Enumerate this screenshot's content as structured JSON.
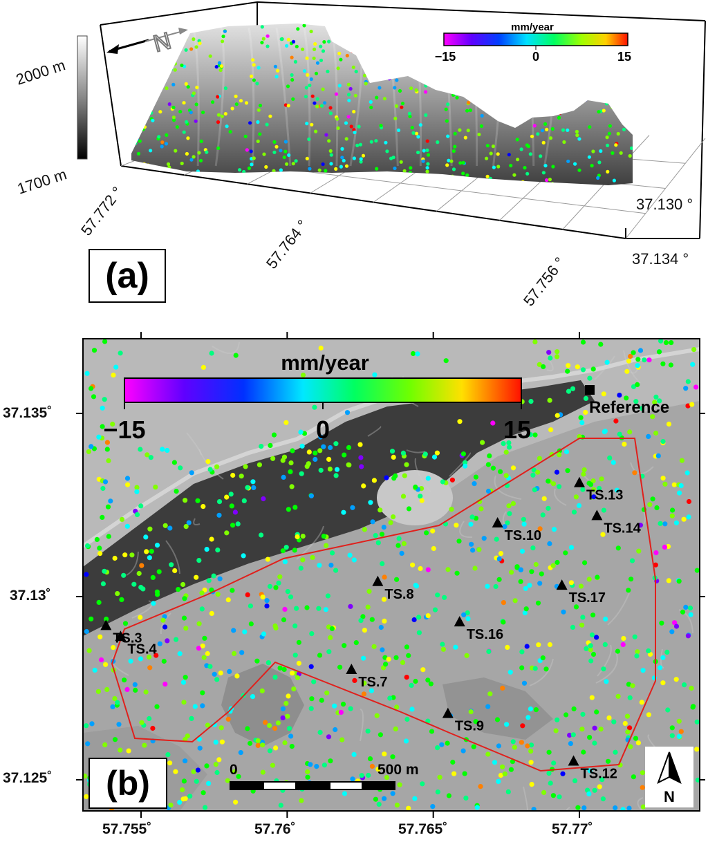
{
  "panel_a": {
    "label": "(a)",
    "elevation_scale": {
      "max_label": "2000 m",
      "min_label": "1700 m"
    },
    "colorbar": {
      "title": "mm/year",
      "min_label": "−15",
      "mid_label": "0",
      "max_label": "15"
    },
    "north_arrow": {
      "letter": "N"
    },
    "lon_ticks": [
      "57.772 °",
      "57.764 °",
      "57.756 °"
    ],
    "lat_ticks": [
      "37.130 °",
      "37.134 °"
    ]
  },
  "panel_b": {
    "label": "(b)",
    "colorbar": {
      "title": "mm/year",
      "min_label": "−15",
      "mid_label": "0",
      "max_label": "15"
    },
    "reference_label": "Reference",
    "scale_bar": {
      "start_label": "0",
      "end_label": "500 m"
    },
    "north_arrow": {
      "letter": "N"
    },
    "lat_ticks": [
      "37.135˚",
      "37.13˚",
      "37.125˚"
    ],
    "lon_ticks": [
      "57.755˚",
      "57.76˚",
      "57.765˚",
      "57.77˚"
    ],
    "stations": [
      {
        "id": "TS.3",
        "lon": 57.7538,
        "lat": 37.1292
      },
      {
        "id": "TS.4",
        "lon": 57.7543,
        "lat": 37.1289
      },
      {
        "id": "TS.7",
        "lon": 57.7622,
        "lat": 37.128
      },
      {
        "id": "TS.8",
        "lon": 57.7631,
        "lat": 37.1304
      },
      {
        "id": "TS.9",
        "lon": 57.7655,
        "lat": 37.1268
      },
      {
        "id": "TS.10",
        "lon": 57.7672,
        "lat": 37.132
      },
      {
        "id": "TS.12",
        "lon": 57.7698,
        "lat": 37.1255
      },
      {
        "id": "TS.13",
        "lon": 57.77,
        "lat": 37.1331
      },
      {
        "id": "TS.14",
        "lon": 57.7706,
        "lat": 37.1322
      },
      {
        "id": "TS.16",
        "lon": 57.7659,
        "lat": 37.1293
      },
      {
        "id": "TS.17",
        "lon": 57.7694,
        "lat": 37.1303
      }
    ]
  },
  "colors": {
    "boundary": "#e0201c",
    "colormap": [
      "#ff00ff",
      "#8000ff",
      "#0000ff",
      "#00a0ff",
      "#00ffff",
      "#00ff80",
      "#00ff00",
      "#80ff00",
      "#ffff00",
      "#ff8000",
      "#ff0000"
    ]
  }
}
